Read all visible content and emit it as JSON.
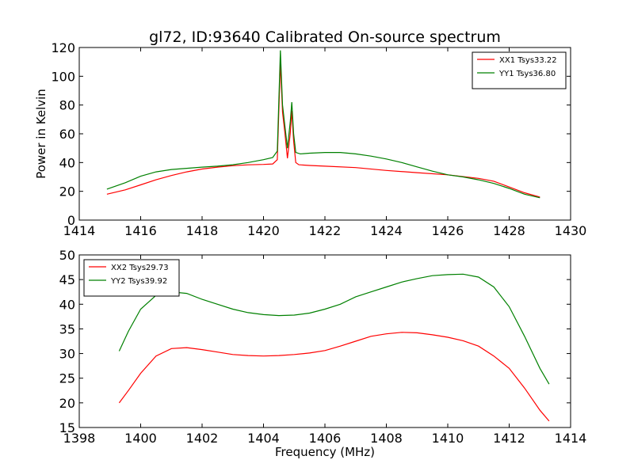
{
  "figure_title": "gl72, ID:93640 Calibrated On-source spectrum",
  "chart_data": [
    {
      "type": "line",
      "ylabel": "Power in Kelvin",
      "xlabel": "",
      "xlim": [
        1414,
        1430
      ],
      "ylim": [
        0,
        120
      ],
      "xticks": [
        1414,
        1416,
        1418,
        1420,
        1422,
        1424,
        1426,
        1428,
        1430
      ],
      "yticks": [
        0,
        20,
        40,
        60,
        80,
        100,
        120
      ],
      "legend": "top-right",
      "grid": false,
      "series": [
        {
          "name": "XX1 Tsys33.22",
          "color": "#ff0000",
          "points": [
            [
              1414.9,
              18
            ],
            [
              1415.5,
              21
            ],
            [
              1416.0,
              24.5
            ],
            [
              1416.5,
              28
            ],
            [
              1417.0,
              31
            ],
            [
              1417.5,
              33.5
            ],
            [
              1418.0,
              35.5
            ],
            [
              1418.5,
              36.8
            ],
            [
              1419.0,
              37.8
            ],
            [
              1419.5,
              38.4
            ],
            [
              1420.0,
              38.7
            ],
            [
              1420.3,
              39.0
            ],
            [
              1420.45,
              42
            ],
            [
              1420.55,
              110
            ],
            [
              1420.62,
              75
            ],
            [
              1420.7,
              60
            ],
            [
              1420.78,
              43
            ],
            [
              1420.87,
              60
            ],
            [
              1420.92,
              76
            ],
            [
              1420.98,
              55
            ],
            [
              1421.05,
              40
            ],
            [
              1421.15,
              38.5
            ],
            [
              1421.5,
              38
            ],
            [
              1422.0,
              37.5
            ],
            [
              1423.0,
              36.5
            ],
            [
              1424.0,
              34.5
            ],
            [
              1425.0,
              33
            ],
            [
              1426.0,
              31.5
            ],
            [
              1427.0,
              29
            ],
            [
              1427.5,
              27
            ],
            [
              1428.0,
              23
            ],
            [
              1428.5,
              19
            ],
            [
              1429.0,
              16
            ]
          ]
        },
        {
          "name": "YY1 Tsys36.80",
          "color": "#008000",
          "points": [
            [
              1414.9,
              21.5
            ],
            [
              1415.5,
              26
            ],
            [
              1416.0,
              30.5
            ],
            [
              1416.5,
              33.5
            ],
            [
              1417.0,
              35.2
            ],
            [
              1417.5,
              36
            ],
            [
              1418.0,
              36.8
            ],
            [
              1418.5,
              37.5
            ],
            [
              1419.0,
              38.5
            ],
            [
              1419.5,
              40
            ],
            [
              1420.0,
              42
            ],
            [
              1420.3,
              43.5
            ],
            [
              1420.45,
              48
            ],
            [
              1420.55,
              118
            ],
            [
              1420.62,
              80
            ],
            [
              1420.7,
              65
            ],
            [
              1420.78,
              50
            ],
            [
              1420.87,
              68
            ],
            [
              1420.92,
              82
            ],
            [
              1420.98,
              60
            ],
            [
              1421.05,
              47
            ],
            [
              1421.2,
              46
            ],
            [
              1421.5,
              46.5
            ],
            [
              1422.0,
              47
            ],
            [
              1422.5,
              47
            ],
            [
              1423.0,
              46
            ],
            [
              1423.5,
              44.5
            ],
            [
              1424.0,
              42.5
            ],
            [
              1424.5,
              40
            ],
            [
              1425.0,
              37
            ],
            [
              1425.5,
              34
            ],
            [
              1426.0,
              31.5
            ],
            [
              1426.5,
              30
            ],
            [
              1427.0,
              28
            ],
            [
              1427.5,
              25.5
            ],
            [
              1428.0,
              22
            ],
            [
              1428.5,
              18
            ],
            [
              1429.0,
              15.5
            ]
          ]
        }
      ]
    },
    {
      "type": "line",
      "ylabel": "",
      "xlabel": "Frequency (MHz)",
      "xlim": [
        1398,
        1414
      ],
      "ylim": [
        15,
        50
      ],
      "xticks": [
        1398,
        1400,
        1402,
        1404,
        1406,
        1408,
        1410,
        1412,
        1414
      ],
      "yticks": [
        15,
        20,
        25,
        30,
        35,
        40,
        45,
        50
      ],
      "legend": "top-left",
      "grid": false,
      "series": [
        {
          "name": "XX2 Tsys29.73",
          "color": "#ff0000",
          "points": [
            [
              1399.3,
              20
            ],
            [
              1399.6,
              22.5
            ],
            [
              1400.0,
              26
            ],
            [
              1400.5,
              29.5
            ],
            [
              1401.0,
              31
            ],
            [
              1401.5,
              31.2
            ],
            [
              1402.0,
              30.8
            ],
            [
              1402.5,
              30.3
            ],
            [
              1403.0,
              29.8
            ],
            [
              1403.5,
              29.6
            ],
            [
              1404.0,
              29.5
            ],
            [
              1404.5,
              29.6
            ],
            [
              1405.0,
              29.8
            ],
            [
              1405.5,
              30.1
            ],
            [
              1406.0,
              30.6
            ],
            [
              1406.5,
              31.5
            ],
            [
              1407.0,
              32.5
            ],
            [
              1407.5,
              33.5
            ],
            [
              1408.0,
              34
            ],
            [
              1408.5,
              34.3
            ],
            [
              1409.0,
              34.2
            ],
            [
              1409.5,
              33.8
            ],
            [
              1410.0,
              33.3
            ],
            [
              1410.5,
              32.6
            ],
            [
              1411.0,
              31.5
            ],
            [
              1411.5,
              29.5
            ],
            [
              1412.0,
              27
            ],
            [
              1412.5,
              23
            ],
            [
              1413.0,
              18.5
            ],
            [
              1413.3,
              16.3
            ]
          ]
        },
        {
          "name": "YY2 Tsys39.92",
          "color": "#008000",
          "points": [
            [
              1399.3,
              30.5
            ],
            [
              1399.6,
              34.5
            ],
            [
              1400.0,
              39
            ],
            [
              1400.5,
              41.8
            ],
            [
              1401.0,
              42.5
            ],
            [
              1401.5,
              42.2
            ],
            [
              1402.0,
              41
            ],
            [
              1402.5,
              40
            ],
            [
              1403.0,
              39
            ],
            [
              1403.5,
              38.3
            ],
            [
              1404.0,
              37.9
            ],
            [
              1404.5,
              37.7
            ],
            [
              1405.0,
              37.8
            ],
            [
              1405.5,
              38.2
            ],
            [
              1406.0,
              39
            ],
            [
              1406.5,
              40
            ],
            [
              1407.0,
              41.5
            ],
            [
              1407.5,
              42.5
            ],
            [
              1408.0,
              43.5
            ],
            [
              1408.5,
              44.5
            ],
            [
              1409.0,
              45.2
            ],
            [
              1409.5,
              45.8
            ],
            [
              1410.0,
              46
            ],
            [
              1410.5,
              46.1
            ],
            [
              1411.0,
              45.5
            ],
            [
              1411.5,
              43.5
            ],
            [
              1412.0,
              39.5
            ],
            [
              1412.5,
              33.5
            ],
            [
              1413.0,
              27
            ],
            [
              1413.3,
              23.8
            ]
          ]
        }
      ]
    }
  ]
}
